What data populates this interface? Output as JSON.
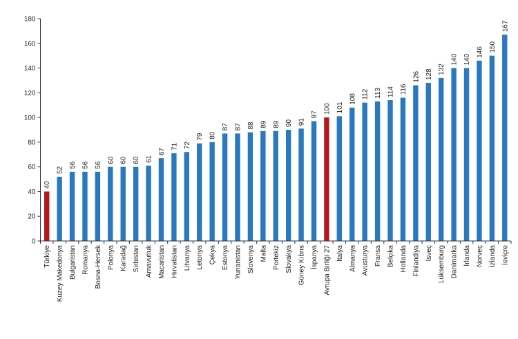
{
  "chart_data": {
    "type": "bar",
    "title": "",
    "xlabel": "",
    "ylabel": "",
    "ylim": [
      0,
      180
    ],
    "yticks": [
      0,
      20,
      40,
      60,
      80,
      100,
      120,
      140,
      160,
      180
    ],
    "grid": false,
    "categories": [
      "Türkiye",
      "Kuzey Makedonya",
      "Bulgaristan",
      "Romanya",
      "Bosna-Hersek",
      "Polonya",
      "Karadağ",
      "Sırbistan",
      "Arnavutluk",
      "Macaristan",
      "Hırvatistan",
      "Litvanya",
      "Letonya",
      "Çekya",
      "Estonya",
      "Yunanistan",
      "Slovenya",
      "Malta",
      "Portekiz",
      "Slovakya",
      "Güney Kıbrıs",
      "İspanya",
      "Avrupa Birliği 27",
      "İtalya",
      "Almanya",
      "Avusturya",
      "Fransa",
      "Belçika",
      "Hollanda",
      "Finlandiya",
      "İsveç",
      "Lüksemburg",
      "Danimarka",
      "İrlanda",
      "Norveç",
      "İzlanda",
      "İsviçre"
    ],
    "values": [
      40,
      52,
      56,
      56,
      56,
      60,
      60,
      60,
      61,
      67,
      71,
      72,
      79,
      80,
      87,
      87,
      88,
      89,
      89,
      90,
      91,
      97,
      100,
      101,
      108,
      112,
      113,
      114,
      116,
      126,
      128,
      132,
      140,
      140,
      146,
      150,
      167
    ],
    "highlighted": [
      "Türkiye",
      "Avrupa Birliği 27"
    ],
    "colors": {
      "default": "#2a78bd",
      "highlight": "#b0191e",
      "axis": "#333333"
    }
  }
}
